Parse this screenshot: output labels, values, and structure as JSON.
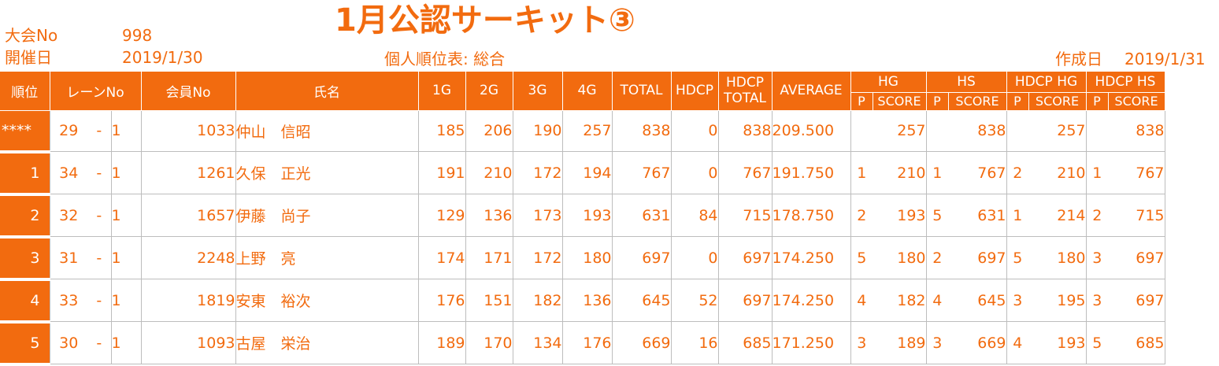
{
  "header": {
    "title": "1月公認サーキット③",
    "tournament_no_label": "大会No",
    "tournament_no": "998",
    "held_date_label": "開催日",
    "held_date": "2019/1/30",
    "report_label": "個人順位表: 総合",
    "created_label": "作成日",
    "created_date": "2019/1/31"
  },
  "columns": {
    "rank": "順位",
    "lane": "レーンNo",
    "member": "会員No",
    "name": "氏名",
    "g1": "1G",
    "g2": "2G",
    "g3": "3G",
    "g4": "4G",
    "total": "TOTAL",
    "hdcp": "HDCP",
    "hdcp_total": "HDCP\nTOTAL",
    "hdcp_total_1": "HDCP",
    "hdcp_total_2": "TOTAL",
    "average": "AVERAGE",
    "hg": "HG",
    "hs": "HS",
    "hdcp_hg": "HDCP HG",
    "hdcp_hs": "HDCP HS",
    "p": "P",
    "score": "SCORE"
  },
  "rows": [
    {
      "rank": "****",
      "lane": "29",
      "dash": "-",
      "sub": "1",
      "member": "1033",
      "name": "仲山　信昭",
      "g1": "185",
      "g2": "206",
      "g3": "190",
      "g4": "257",
      "total": "838",
      "hdcp": "0",
      "hdcp_total": "838",
      "average": "209.500",
      "hg_p": "",
      "hg_s": "257",
      "hs_p": "",
      "hs_s": "838",
      "hhg_p": "",
      "hhg_s": "257",
      "hhs_p": "",
      "hhs_s": "838"
    },
    {
      "rank": "1",
      "lane": "34",
      "dash": "-",
      "sub": "1",
      "member": "1261",
      "name": "久保　正光",
      "g1": "191",
      "g2": "210",
      "g3": "172",
      "g4": "194",
      "total": "767",
      "hdcp": "0",
      "hdcp_total": "767",
      "average": "191.750",
      "hg_p": "1",
      "hg_s": "210",
      "hs_p": "1",
      "hs_s": "767",
      "hhg_p": "2",
      "hhg_s": "210",
      "hhs_p": "1",
      "hhs_s": "767"
    },
    {
      "rank": "2",
      "lane": "32",
      "dash": "-",
      "sub": "1",
      "member": "1657",
      "name": "伊藤　尚子",
      "g1": "129",
      "g2": "136",
      "g3": "173",
      "g4": "193",
      "total": "631",
      "hdcp": "84",
      "hdcp_total": "715",
      "average": "178.750",
      "hg_p": "2",
      "hg_s": "193",
      "hs_p": "5",
      "hs_s": "631",
      "hhg_p": "1",
      "hhg_s": "214",
      "hhs_p": "2",
      "hhs_s": "715"
    },
    {
      "rank": "3",
      "lane": "31",
      "dash": "-",
      "sub": "1",
      "member": "2248",
      "name": "上野　亮",
      "g1": "174",
      "g2": "171",
      "g3": "172",
      "g4": "180",
      "total": "697",
      "hdcp": "0",
      "hdcp_total": "697",
      "average": "174.250",
      "hg_p": "5",
      "hg_s": "180",
      "hs_p": "2",
      "hs_s": "697",
      "hhg_p": "5",
      "hhg_s": "180",
      "hhs_p": "3",
      "hhs_s": "697"
    },
    {
      "rank": "4",
      "lane": "33",
      "dash": "-",
      "sub": "1",
      "member": "1819",
      "name": "安東　裕次",
      "g1": "176",
      "g2": "151",
      "g3": "182",
      "g4": "136",
      "total": "645",
      "hdcp": "52",
      "hdcp_total": "697",
      "average": "174.250",
      "hg_p": "4",
      "hg_s": "182",
      "hs_p": "4",
      "hs_s": "645",
      "hhg_p": "3",
      "hhg_s": "195",
      "hhs_p": "3",
      "hhs_s": "697"
    },
    {
      "rank": "5",
      "lane": "30",
      "dash": "-",
      "sub": "1",
      "member": "1093",
      "name": "古屋　栄治",
      "g1": "189",
      "g2": "170",
      "g3": "134",
      "g4": "176",
      "total": "669",
      "hdcp": "16",
      "hdcp_total": "685",
      "average": "171.250",
      "hg_p": "3",
      "hg_s": "189",
      "hs_p": "3",
      "hs_s": "669",
      "hhg_p": "4",
      "hhg_s": "193",
      "hhs_p": "5",
      "hhs_s": "685"
    }
  ]
}
